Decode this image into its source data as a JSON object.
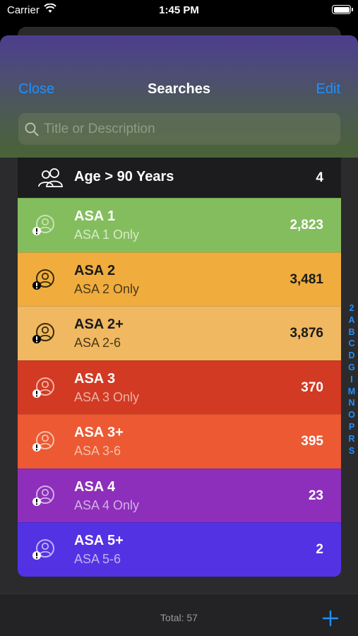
{
  "status_bar": {
    "carrier": "Carrier",
    "time": "1:45 PM"
  },
  "header": {
    "close_label": "Close",
    "title": "Searches",
    "edit_label": "Edit",
    "search_placeholder": "Title or Description",
    "search_value": ""
  },
  "searches": [
    {
      "title": "Age > 90 Years",
      "subtitle": "",
      "count": "4",
      "icon": "people-icon",
      "bg": "#1c1c1e",
      "text": "#ffffff",
      "sub": "#ffffff",
      "iconcolor": "#ffffff",
      "badge": "#ffffff"
    },
    {
      "title": "ASA 1",
      "subtitle": "ASA 1 Only",
      "count": "2,823",
      "icon": "person-alert-icon",
      "bg": "#84bd5e",
      "text": "#ffffff",
      "sub": "#d6ebc6",
      "iconcolor": "#c8e3b5",
      "badge": "#ffffff"
    },
    {
      "title": "ASA 2",
      "subtitle": "ASA 2 Only",
      "count": "3,481",
      "icon": "person-alert-icon",
      "bg": "#f0ad3e",
      "text": "#1a1a1a",
      "sub": "#4a3a1a",
      "iconcolor": "#3a2a0a",
      "badge": "#000000"
    },
    {
      "title": "ASA 2+",
      "subtitle": "ASA 2-6",
      "count": "3,876",
      "icon": "person-alert-icon",
      "bg": "#f0b860",
      "text": "#1a1a1a",
      "sub": "#4a3a1a",
      "iconcolor": "#3a2a0a",
      "badge": "#000000"
    },
    {
      "title": "ASA 3",
      "subtitle": "ASA 3 Only",
      "count": "370",
      "icon": "person-alert-icon",
      "bg": "#d23a23",
      "text": "#ffffff",
      "sub": "#efb0a5",
      "iconcolor": "#f3b3a6",
      "badge": "#ffffff"
    },
    {
      "title": "ASA 3+",
      "subtitle": "ASA 3-6",
      "count": "395",
      "icon": "person-alert-icon",
      "bg": "#ec5933",
      "text": "#ffffff",
      "sub": "#f7bfa9",
      "iconcolor": "#f7bfa9",
      "badge": "#ffffff"
    },
    {
      "title": "ASA 4",
      "subtitle": "ASA 4 Only",
      "count": "23",
      "icon": "person-alert-icon",
      "bg": "#8d2fbb",
      "text": "#ffffff",
      "sub": "#d3b0e6",
      "iconcolor": "#d3b0e6",
      "badge": "#ffffff"
    },
    {
      "title": "ASA 5+",
      "subtitle": "ASA 5-6",
      "count": "2",
      "icon": "person-alert-icon",
      "bg": "#5332e4",
      "text": "#ffffff",
      "sub": "#c0b3f3",
      "iconcolor": "#c0b3f3",
      "badge": "#ffffff"
    }
  ],
  "index_letters": [
    "2",
    "A",
    "B",
    "C",
    "D",
    "G",
    "I",
    "M",
    "N",
    "O",
    "P",
    "R",
    "S"
  ],
  "toolbar": {
    "total_label": "Total: 57"
  },
  "colors": {
    "accent": "#1e90ff",
    "sheet": "#2b2b2d"
  }
}
